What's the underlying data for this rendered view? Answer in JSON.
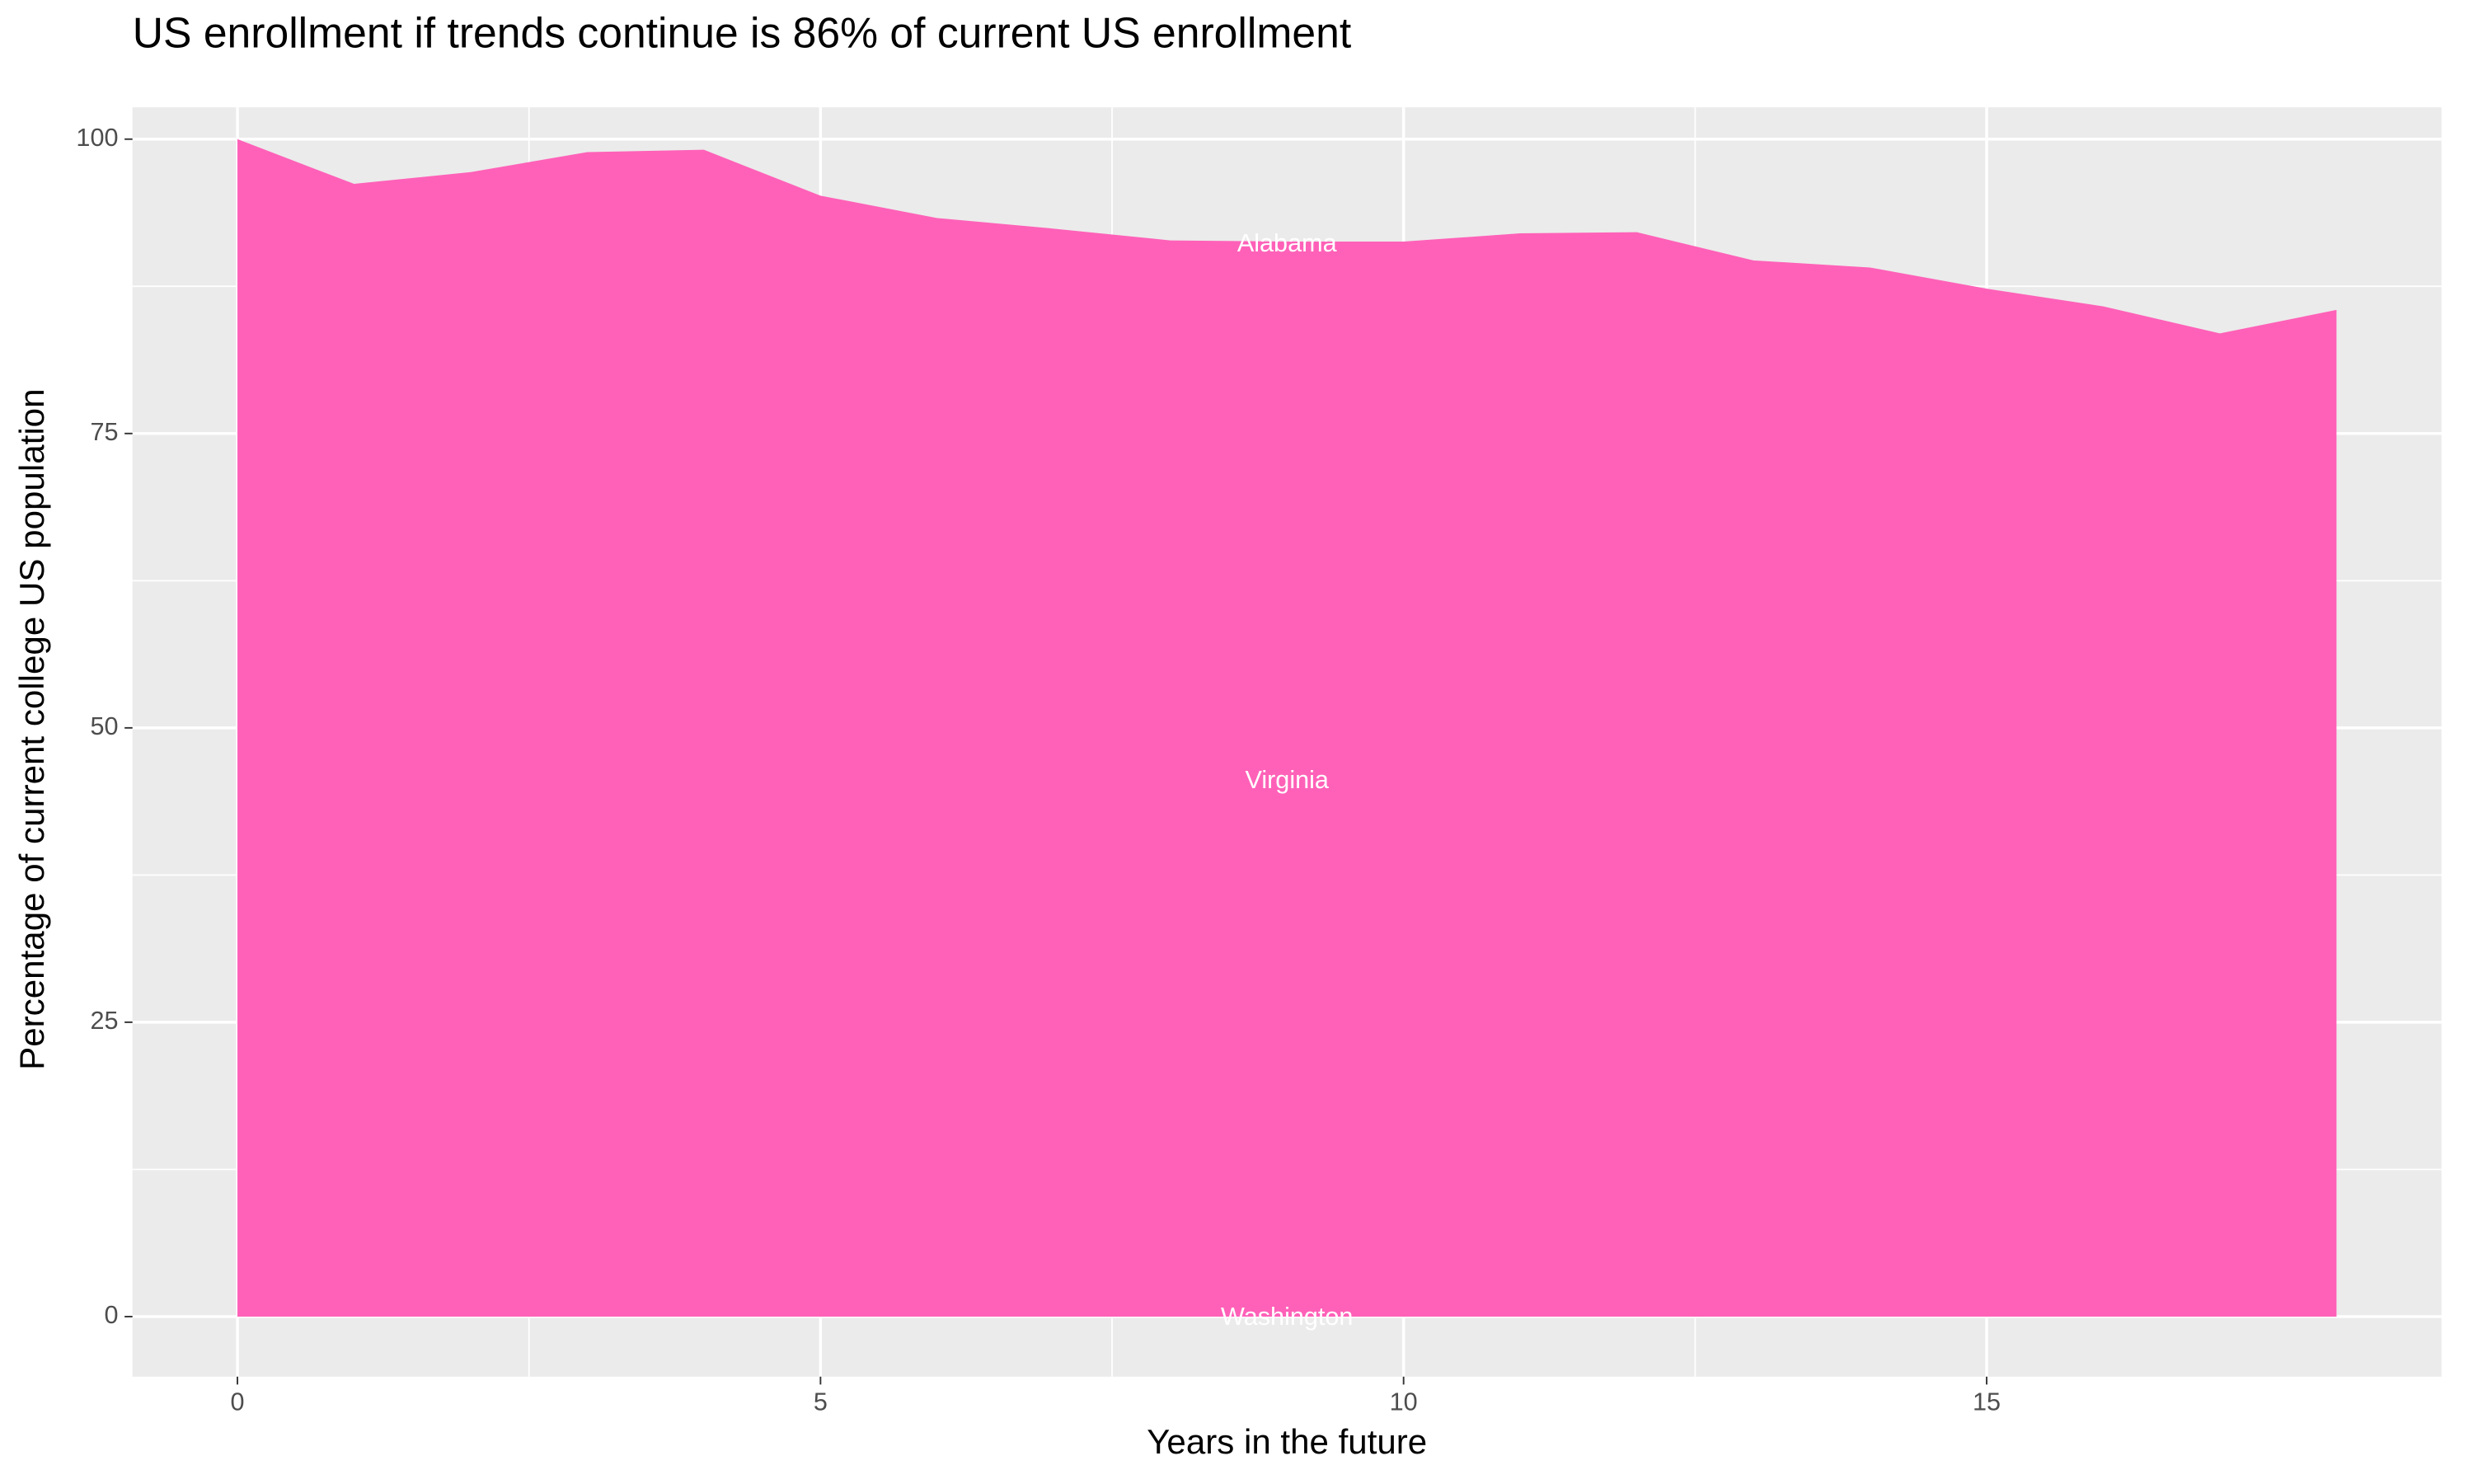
{
  "chart_data": {
    "type": "area",
    "title": "US enrollment if trends continue is 86% of current US enrollment",
    "x_label": "Years in the future",
    "y_label": "Percentage of current college US population",
    "x": [
      0,
      1,
      2,
      3,
      4,
      5,
      6,
      7,
      8,
      9,
      10,
      11,
      12,
      13,
      14,
      15,
      16,
      17,
      18
    ],
    "series": [
      {
        "color": "#ff61b8",
        "values": [
          100,
          96.2,
          97.2,
          98.9,
          99.1,
          95.2,
          93.3,
          92.4,
          91.4,
          91.3,
          91.3,
          92.0,
          92.1,
          89.7,
          89.1,
          87.3,
          85.8,
          83.5,
          85.5
        ]
      }
    ],
    "annotations": [
      "Alabama",
      "Virginia",
      "Washington"
    ],
    "xlim": [
      -0.9,
      18.9
    ],
    "ylim": [
      -5.1,
      102.7
    ],
    "xticks": [
      0,
      5,
      10,
      15
    ],
    "yticks": [
      0,
      25,
      50,
      75,
      100
    ],
    "grid": true
  }
}
